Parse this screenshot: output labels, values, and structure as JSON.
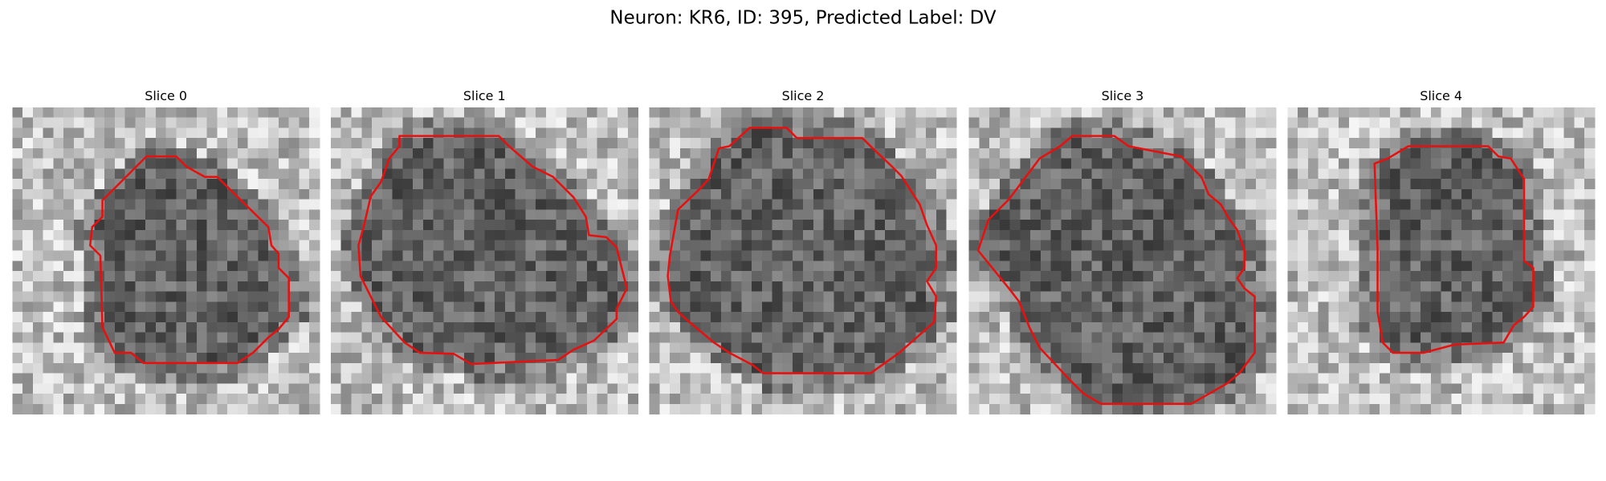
{
  "title": "Neuron: KR6, ID: 395, Predicted Label: DV",
  "panels": [
    {
      "title": "Slice 0"
    },
    {
      "title": "Slice 1"
    },
    {
      "title": "Slice 2"
    },
    {
      "title": "Slice 3"
    },
    {
      "title": "Slice 4"
    }
  ]
}
